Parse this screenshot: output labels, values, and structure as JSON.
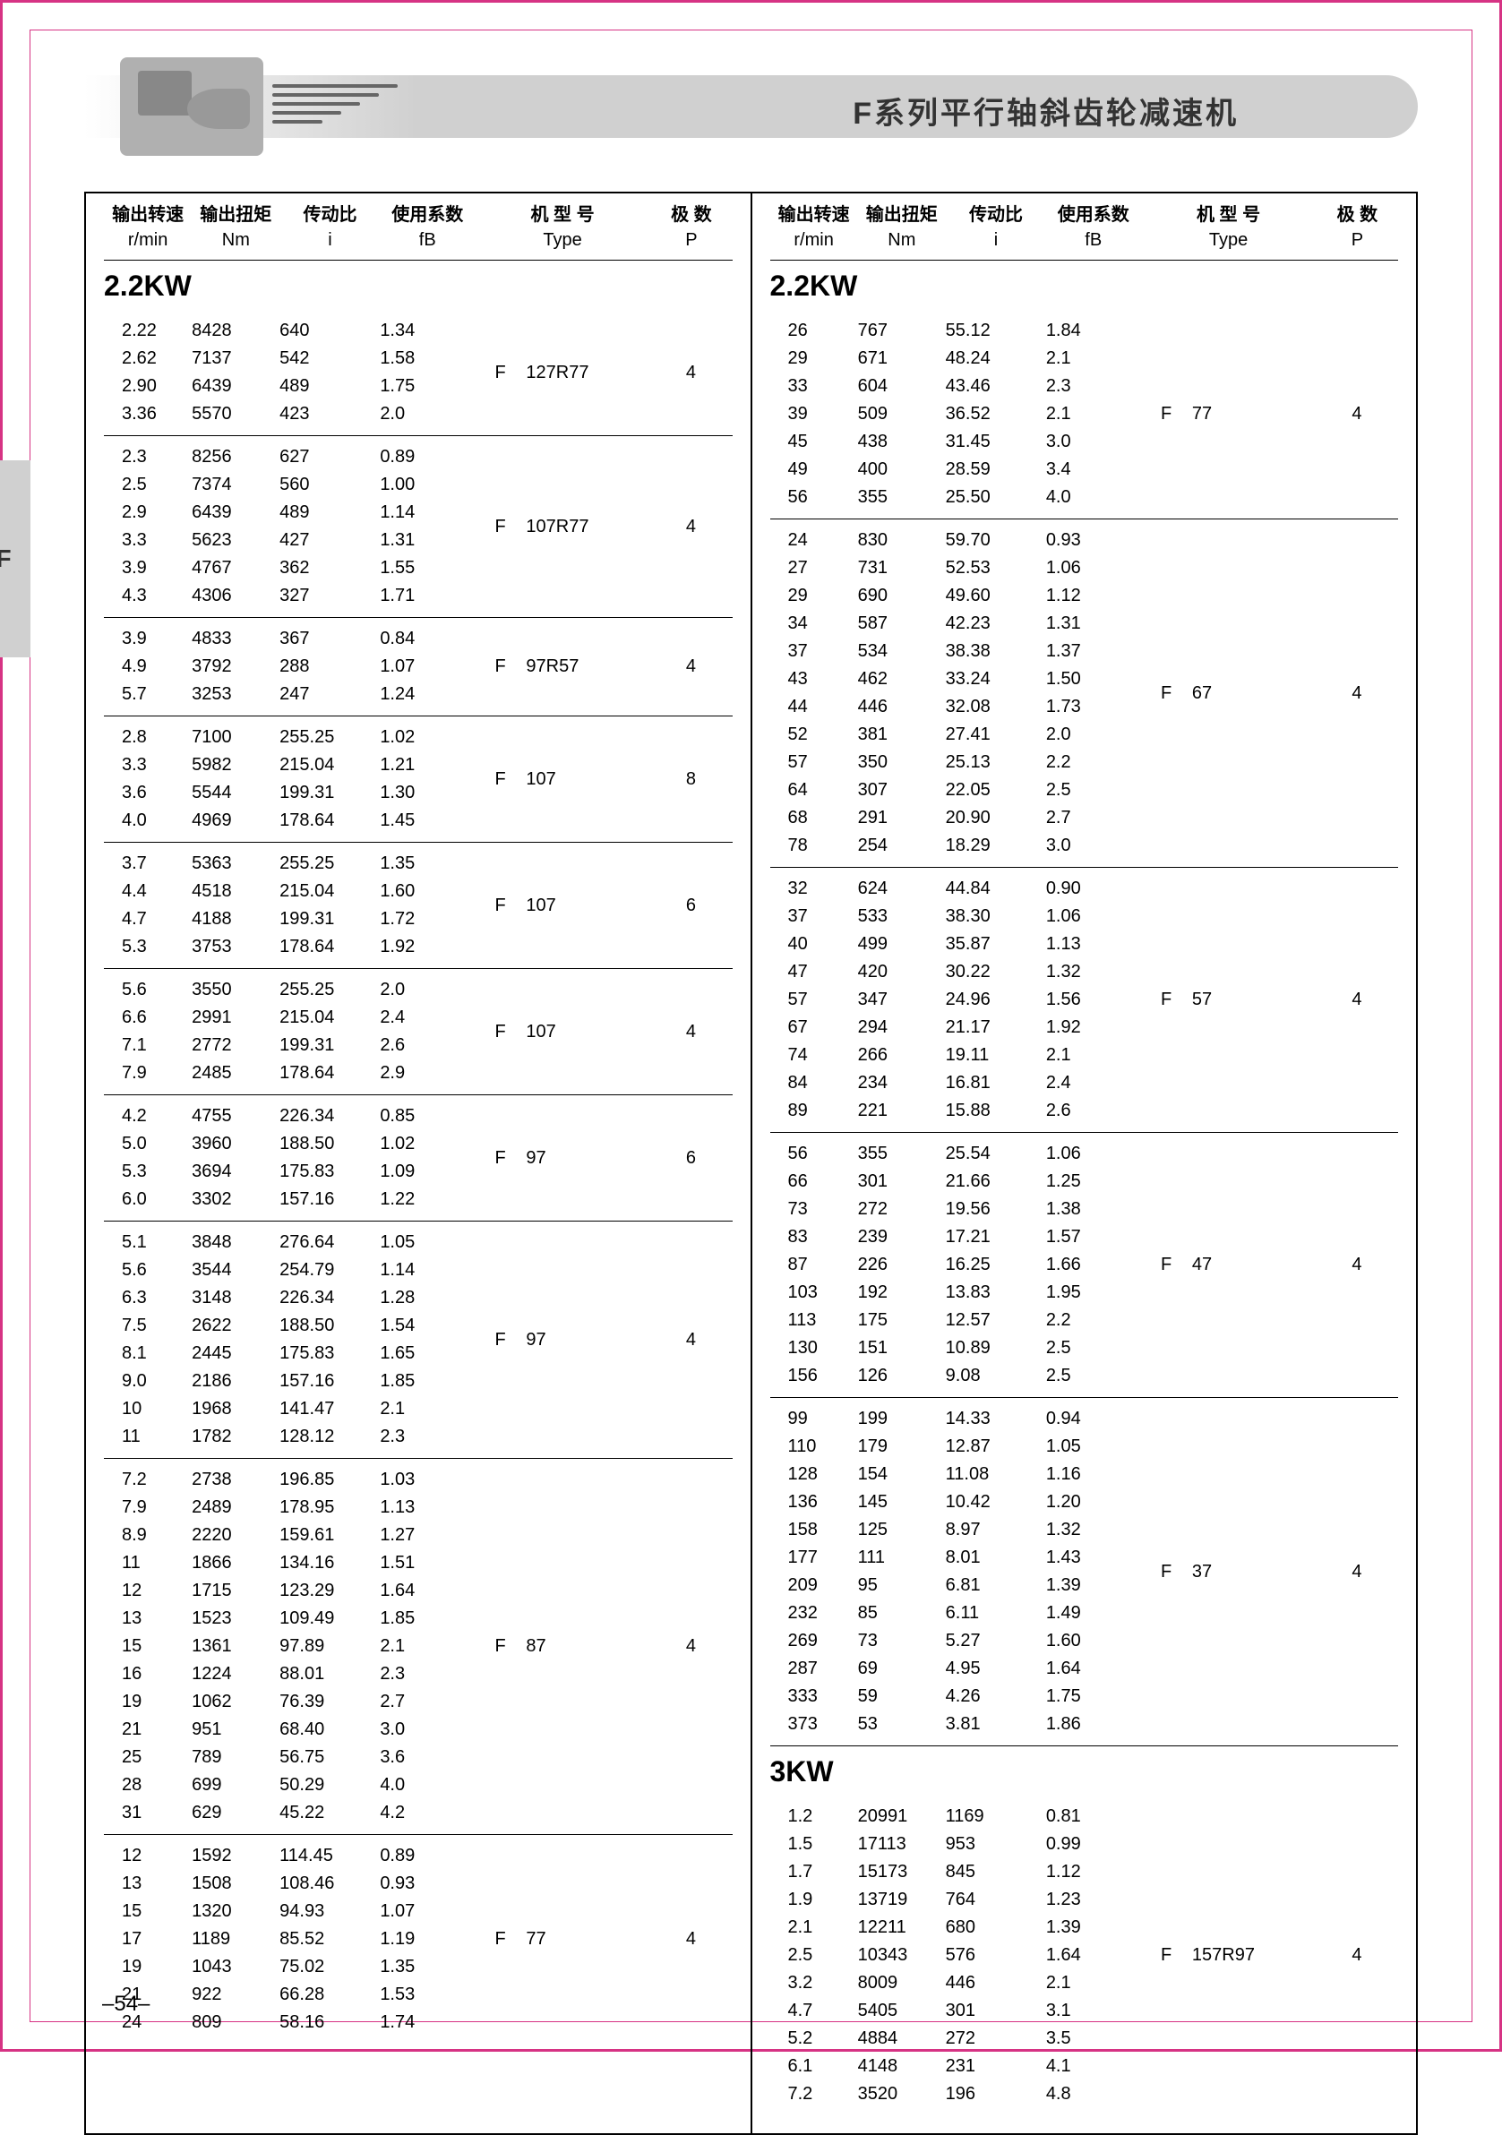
{
  "header_title": "F系列平行轴斜齿轮减速机",
  "side_tab": "F",
  "page_number": "–54–",
  "col_header": {
    "rmin_cn": "输出转速",
    "rmin_en": "r/min",
    "nm_cn": "输出扭矩",
    "nm_en": "Nm",
    "i_cn": "传动比",
    "i_en": "i",
    "fb_cn": "使用系数",
    "fb_en": "fB",
    "type_cn": "机 型 号",
    "type_en": "Type",
    "p_cn": "极 数",
    "p_en": "P"
  },
  "left": {
    "group_title": "2.2KW",
    "blocks": [
      {
        "type_f": "F",
        "type_model": "127R77",
        "p": "4",
        "rows": [
          [
            "2.22",
            "8428",
            "640",
            "1.34"
          ],
          [
            "2.62",
            "7137",
            "542",
            "1.58"
          ],
          [
            "2.90",
            "6439",
            "489",
            "1.75"
          ],
          [
            "3.36",
            "5570",
            "423",
            "2.0"
          ]
        ]
      },
      {
        "type_f": "F",
        "type_model": "107R77",
        "p": "4",
        "rows": [
          [
            "2.3",
            "8256",
            "627",
            "0.89"
          ],
          [
            "2.5",
            "7374",
            "560",
            "1.00"
          ],
          [
            "2.9",
            "6439",
            "489",
            "1.14"
          ],
          [
            "3.3",
            "5623",
            "427",
            "1.31"
          ],
          [
            "3.9",
            "4767",
            "362",
            "1.55"
          ],
          [
            "4.3",
            "4306",
            "327",
            "1.71"
          ]
        ]
      },
      {
        "type_f": "F",
        "type_model": "97R57",
        "p": "4",
        "rows": [
          [
            "3.9",
            "4833",
            "367",
            "0.84"
          ],
          [
            "4.9",
            "3792",
            "288",
            "1.07"
          ],
          [
            "5.7",
            "3253",
            "247",
            "1.24"
          ]
        ]
      },
      {
        "type_f": "F",
        "type_model": "107",
        "p": "8",
        "rows": [
          [
            "2.8",
            "7100",
            "255.25",
            "1.02"
          ],
          [
            "3.3",
            "5982",
            "215.04",
            "1.21"
          ],
          [
            "3.6",
            "5544",
            "199.31",
            "1.30"
          ],
          [
            "4.0",
            "4969",
            "178.64",
            "1.45"
          ]
        ]
      },
      {
        "type_f": "F",
        "type_model": "107",
        "p": "6",
        "rows": [
          [
            "3.7",
            "5363",
            "255.25",
            "1.35"
          ],
          [
            "4.4",
            "4518",
            "215.04",
            "1.60"
          ],
          [
            "4.7",
            "4188",
            "199.31",
            "1.72"
          ],
          [
            "5.3",
            "3753",
            "178.64",
            "1.92"
          ]
        ]
      },
      {
        "type_f": "F",
        "type_model": "107",
        "p": "4",
        "rows": [
          [
            "5.6",
            "3550",
            "255.25",
            "2.0"
          ],
          [
            "6.6",
            "2991",
            "215.04",
            "2.4"
          ],
          [
            "7.1",
            "2772",
            "199.31",
            "2.6"
          ],
          [
            "7.9",
            "2485",
            "178.64",
            "2.9"
          ]
        ]
      },
      {
        "type_f": "F",
        "type_model": "97",
        "p": "6",
        "rows": [
          [
            "4.2",
            "4755",
            "226.34",
            "0.85"
          ],
          [
            "5.0",
            "3960",
            "188.50",
            "1.02"
          ],
          [
            "5.3",
            "3694",
            "175.83",
            "1.09"
          ],
          [
            "6.0",
            "3302",
            "157.16",
            "1.22"
          ]
        ]
      },
      {
        "type_f": "F",
        "type_model": "97",
        "p": "4",
        "rows": [
          [
            "5.1",
            "3848",
            "276.64",
            "1.05"
          ],
          [
            "5.6",
            "3544",
            "254.79",
            "1.14"
          ],
          [
            "6.3",
            "3148",
            "226.34",
            "1.28"
          ],
          [
            "7.5",
            "2622",
            "188.50",
            "1.54"
          ],
          [
            "8.1",
            "2445",
            "175.83",
            "1.65"
          ],
          [
            "9.0",
            "2186",
            "157.16",
            "1.85"
          ],
          [
            "10",
            "1968",
            "141.47",
            "2.1"
          ],
          [
            "11",
            "1782",
            "128.12",
            "2.3"
          ]
        ]
      },
      {
        "type_f": "F",
        "type_model": "87",
        "p": "4",
        "rows": [
          [
            "7.2",
            "2738",
            "196.85",
            "1.03"
          ],
          [
            "7.9",
            "2489",
            "178.95",
            "1.13"
          ],
          [
            "8.9",
            "2220",
            "159.61",
            "1.27"
          ],
          [
            "11",
            "1866",
            "134.16",
            "1.51"
          ],
          [
            "12",
            "1715",
            "123.29",
            "1.64"
          ],
          [
            "13",
            "1523",
            "109.49",
            "1.85"
          ],
          [
            "15",
            "1361",
            "97.89",
            "2.1"
          ],
          [
            "16",
            "1224",
            "88.01",
            "2.3"
          ],
          [
            "19",
            "1062",
            "76.39",
            "2.7"
          ],
          [
            "21",
            "951",
            "68.40",
            "3.0"
          ],
          [
            "25",
            "789",
            "56.75",
            "3.6"
          ],
          [
            "28",
            "699",
            "50.29",
            "4.0"
          ],
          [
            "31",
            "629",
            "45.22",
            "4.2"
          ]
        ]
      },
      {
        "type_f": "F",
        "type_model": "77",
        "p": "4",
        "rows": [
          [
            "12",
            "1592",
            "114.45",
            "0.89"
          ],
          [
            "13",
            "1508",
            "108.46",
            "0.93"
          ],
          [
            "15",
            "1320",
            "94.93",
            "1.07"
          ],
          [
            "17",
            "1189",
            "85.52",
            "1.19"
          ],
          [
            "19",
            "1043",
            "75.02",
            "1.35"
          ],
          [
            "21",
            "922",
            "66.28",
            "1.53"
          ],
          [
            "24",
            "809",
            "58.16",
            "1.74"
          ]
        ]
      }
    ]
  },
  "right": {
    "groups": [
      {
        "title": "2.2KW",
        "blocks": [
          {
            "type_f": "F",
            "type_model": "77",
            "p": "4",
            "rows": [
              [
                "26",
                "767",
                "55.12",
                "1.84"
              ],
              [
                "29",
                "671",
                "48.24",
                "2.1"
              ],
              [
                "33",
                "604",
                "43.46",
                "2.3"
              ],
              [
                "39",
                "509",
                "36.52",
                "2.1"
              ],
              [
                "45",
                "438",
                "31.45",
                "3.0"
              ],
              [
                "49",
                "400",
                "28.59",
                "3.4"
              ],
              [
                "56",
                "355",
                "25.50",
                "4.0"
              ]
            ]
          },
          {
            "type_f": "F",
            "type_model": "67",
            "p": "4",
            "rows": [
              [
                "24",
                "830",
                "59.70",
                "0.93"
              ],
              [
                "27",
                "731",
                "52.53",
                "1.06"
              ],
              [
                "29",
                "690",
                "49.60",
                "1.12"
              ],
              [
                "34",
                "587",
                "42.23",
                "1.31"
              ],
              [
                "37",
                "534",
                "38.38",
                "1.37"
              ],
              [
                "43",
                "462",
                "33.24",
                "1.50"
              ],
              [
                "44",
                "446",
                "32.08",
                "1.73"
              ],
              [
                "52",
                "381",
                "27.41",
                "2.0"
              ],
              [
                "57",
                "350",
                "25.13",
                "2.2"
              ],
              [
                "64",
                "307",
                "22.05",
                "2.5"
              ],
              [
                "68",
                "291",
                "20.90",
                "2.7"
              ],
              [
                "78",
                "254",
                "18.29",
                "3.0"
              ]
            ]
          },
          {
            "type_f": "F",
            "type_model": "57",
            "p": "4",
            "rows": [
              [
                "32",
                "624",
                "44.84",
                "0.90"
              ],
              [
                "37",
                "533",
                "38.30",
                "1.06"
              ],
              [
                "40",
                "499",
                "35.87",
                "1.13"
              ],
              [
                "47",
                "420",
                "30.22",
                "1.32"
              ],
              [
                "57",
                "347",
                "24.96",
                "1.56"
              ],
              [
                "67",
                "294",
                "21.17",
                "1.92"
              ],
              [
                "74",
                "266",
                "19.11",
                "2.1"
              ],
              [
                "84",
                "234",
                "16.81",
                "2.4"
              ],
              [
                "89",
                "221",
                "15.88",
                "2.6"
              ]
            ]
          },
          {
            "type_f": "F",
            "type_model": "47",
            "p": "4",
            "rows": [
              [
                "56",
                "355",
                "25.54",
                "1.06"
              ],
              [
                "66",
                "301",
                "21.66",
                "1.25"
              ],
              [
                "73",
                "272",
                "19.56",
                "1.38"
              ],
              [
                "83",
                "239",
                "17.21",
                "1.57"
              ],
              [
                "87",
                "226",
                "16.25",
                "1.66"
              ],
              [
                "103",
                "192",
                "13.83",
                "1.95"
              ],
              [
                "113",
                "175",
                "12.57",
                "2.2"
              ],
              [
                "130",
                "151",
                "10.89",
                "2.5"
              ],
              [
                "156",
                "126",
                "9.08",
                "2.5"
              ]
            ]
          },
          {
            "type_f": "F",
            "type_model": "37",
            "p": "4",
            "rows": [
              [
                "99",
                "199",
                "14.33",
                "0.94"
              ],
              [
                "110",
                "179",
                "12.87",
                "1.05"
              ],
              [
                "128",
                "154",
                "11.08",
                "1.16"
              ],
              [
                "136",
                "145",
                "10.42",
                "1.20"
              ],
              [
                "158",
                "125",
                "8.97",
                "1.32"
              ],
              [
                "177",
                "111",
                "8.01",
                "1.43"
              ],
              [
                "209",
                "95",
                "6.81",
                "1.39"
              ],
              [
                "232",
                "85",
                "6.11",
                "1.49"
              ],
              [
                "269",
                "73",
                "5.27",
                "1.60"
              ],
              [
                "287",
                "69",
                "4.95",
                "1.64"
              ],
              [
                "333",
                "59",
                "4.26",
                "1.75"
              ],
              [
                "373",
                "53",
                "3.81",
                "1.86"
              ]
            ]
          }
        ]
      },
      {
        "title": "3KW",
        "blocks": [
          {
            "type_f": "F",
            "type_model": "157R97",
            "p": "4",
            "rows": [
              [
                "1.2",
                "20991",
                "1169",
                "0.81"
              ],
              [
                "1.5",
                "17113",
                "953",
                "0.99"
              ],
              [
                "1.7",
                "15173",
                "845",
                "1.12"
              ],
              [
                "1.9",
                "13719",
                "764",
                "1.23"
              ],
              [
                "2.1",
                "12211",
                "680",
                "1.39"
              ],
              [
                "2.5",
                "10343",
                "576",
                "1.64"
              ],
              [
                "3.2",
                "8009",
                "446",
                "2.1"
              ],
              [
                "4.7",
                "5405",
                "301",
                "3.1"
              ],
              [
                "5.2",
                "4884",
                "272",
                "3.5"
              ],
              [
                "6.1",
                "4148",
                "231",
                "4.1"
              ],
              [
                "7.2",
                "3520",
                "196",
                "4.8"
              ]
            ]
          }
        ]
      }
    ]
  }
}
